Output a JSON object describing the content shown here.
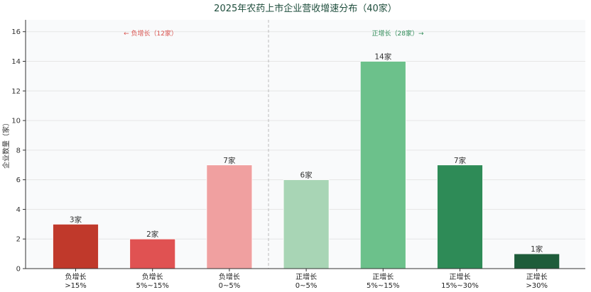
{
  "chart_data": {
    "type": "bar",
    "title": "2025年农药上市企业营收增速分布（40家）",
    "ylabel": "企业数量（家）",
    "xlabel": "",
    "ylim": [
      0,
      16.8
    ],
    "yticks": [
      0,
      2,
      4,
      6,
      8,
      10,
      12,
      14,
      16
    ],
    "grid": true,
    "categories": [
      [
        "负增长",
        ">15%"
      ],
      [
        "负增长",
        "5%~15%"
      ],
      [
        "负增长",
        "0~5%"
      ],
      [
        "正增长",
        "0~5%"
      ],
      [
        "正增长",
        "5%~15%"
      ],
      [
        "正增长",
        "15%~30%"
      ],
      [
        "正增长",
        ">30%"
      ]
    ],
    "values": [
      3,
      2,
      7,
      6,
      14,
      7,
      1
    ],
    "data_labels": [
      "3家",
      "2家",
      "7家",
      "6家",
      "14家",
      "7家",
      "1家"
    ],
    "colors": [
      "#c0392b",
      "#e05252",
      "#f0a0a0",
      "#a8d5b5",
      "#6cc18b",
      "#2e8b57",
      "#1e5c3a"
    ],
    "annotations": {
      "negative": "← 负增长（12家）",
      "positive": "正增长（28家）→"
    }
  }
}
